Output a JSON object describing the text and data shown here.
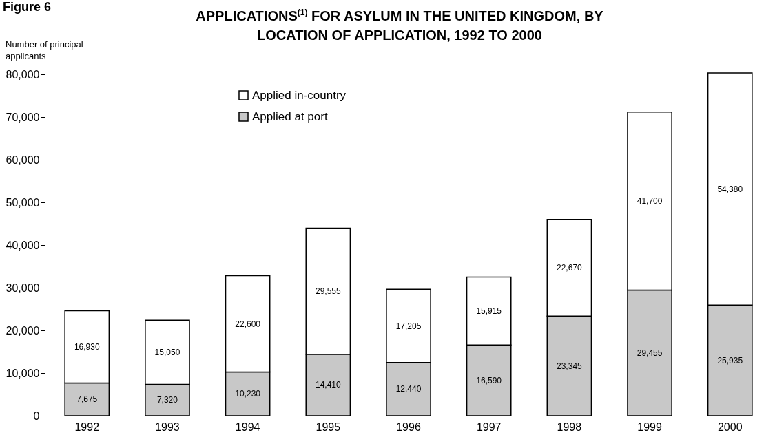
{
  "chart_data": {
    "type": "bar",
    "title": "APPLICATIONS$^{(1)}$ FOR ASYLUM IN THE UNITED KINGDOM, BY LOCATION OF APPLICATION, 1992 TO 2000",
    "ylabel": "Number of principal applicants",
    "annotations": [
      "Figure 6"
    ],
    "categories": [
      "1992",
      "1993",
      "1994",
      "1995",
      "1996",
      "1997",
      "1998",
      "1999",
      "2000"
    ],
    "stacked": true,
    "legend": "top left",
    "grid": false,
    "series": [
      {
        "name": "Applied at port",
        "color": "#c8c8c8",
        "values": [
          7675,
          7320,
          10230,
          14410,
          12440,
          16590,
          23345,
          29455,
          25935
        ],
        "value_labels": [
          "7,675",
          "7,320",
          "10,230",
          "14,410",
          "12,440",
          "16,590",
          "23,345",
          "29,455",
          "25,935"
        ]
      },
      {
        "name": "Applied in-country",
        "color": "#ffffff",
        "values": [
          16930,
          15050,
          22600,
          29555,
          17205,
          15915,
          22670,
          41700,
          54380
        ],
        "value_labels": [
          "16,930",
          "15,050",
          "22,600",
          "29,555",
          "17,205",
          "15,915",
          "22,670",
          "41,700",
          "54,380"
        ]
      }
    ],
    "ylim": [
      0,
      80000
    ],
    "yticks": [
      {
        "value": 0,
        "label": "0"
      },
      {
        "value": 10000,
        "label": "10,000"
      },
      {
        "value": 20000,
        "label": "20,000"
      },
      {
        "value": 30000,
        "label": "30,000"
      },
      {
        "value": 40000,
        "label": "40,000"
      },
      {
        "value": 50000,
        "label": "50,000"
      },
      {
        "value": 60000,
        "label": "60,000"
      },
      {
        "value": 70000,
        "label": "70,000"
      },
      {
        "value": 80000,
        "label": "80,000"
      }
    ]
  }
}
